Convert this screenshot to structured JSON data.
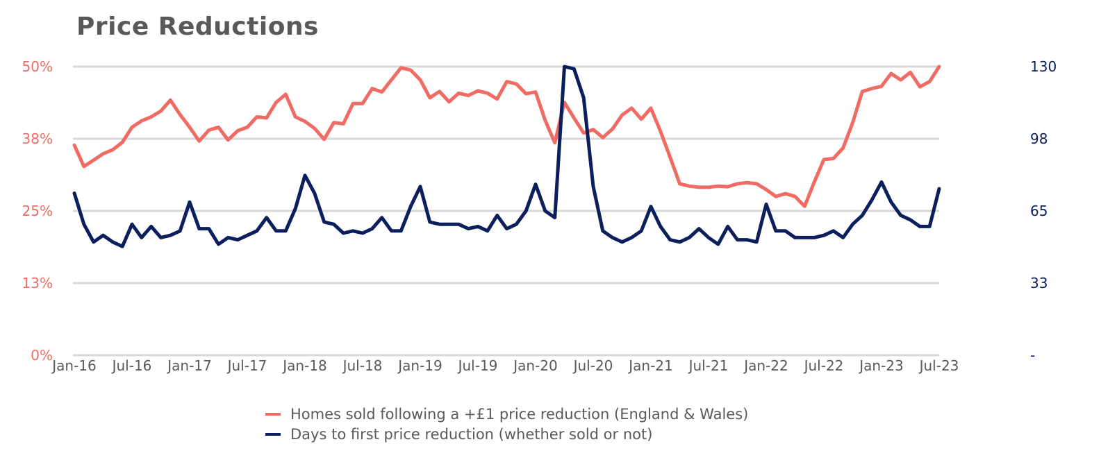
{
  "chart_data": {
    "type": "line",
    "title": "Price Reductions",
    "xlabel": "",
    "ylabel_left": "",
    "ylabel_right": "",
    "x_start": "Jan-16",
    "x_end": "Jul-23",
    "x_ticks": [
      "Jan-16",
      "Jul-16",
      "Jan-17",
      "Jul-17",
      "Jan-18",
      "Jul-18",
      "Jan-19",
      "Jul-19",
      "Jan-20",
      "Jul-20",
      "Jan-21",
      "Jul-21",
      "Jan-22",
      "Jul-22",
      "Jan-23",
      "Jul-23"
    ],
    "y_left": {
      "ticks": [
        "0%",
        "13%",
        "25%",
        "38%",
        "50%"
      ],
      "range": [
        0,
        50
      ],
      "color": "#ef6b64"
    },
    "y_right": {
      "ticks": [
        "-",
        "33",
        "65",
        "98",
        "130"
      ],
      "range": [
        0,
        130
      ],
      "color": "#0b1f5c"
    },
    "grid": true,
    "legend_position": "bottom",
    "series": [
      {
        "name": "Homes sold following a +£1 price reduction (England & Wales)",
        "axis": "left",
        "color": "#ef6b64",
        "values": [
          36.4,
          32.7,
          33.8,
          34.9,
          35.6,
          36.9,
          39.5,
          40.6,
          41.3,
          42.3,
          44.2,
          41.7,
          39.5,
          37.1,
          39.0,
          39.5,
          37.3,
          38.9,
          39.5,
          41.3,
          41.1,
          43.8,
          45.2,
          41.3,
          40.5,
          39.3,
          37.4,
          40.3,
          40.1,
          43.6,
          43.6,
          46.2,
          45.6,
          47.7,
          49.8,
          49.4,
          47.7,
          44.6,
          45.7,
          43.9,
          45.4,
          45.0,
          45.8,
          45.4,
          44.4,
          47.4,
          47.0,
          45.3,
          45.6,
          40.7,
          36.8,
          43.8,
          41.1,
          38.5,
          39.1,
          37.7,
          39.2,
          41.6,
          42.8,
          40.9,
          42.8,
          38.8,
          34.3,
          29.7,
          29.3,
          29.1,
          29.1,
          29.3,
          29.2,
          29.7,
          29.9,
          29.7,
          28.7,
          27.5,
          28.0,
          27.5,
          25.8,
          30.0,
          33.9,
          34.1,
          35.9,
          40.3,
          45.7,
          46.2,
          46.6,
          48.8,
          47.7,
          49.0,
          46.5,
          47.4,
          50.0
        ]
      },
      {
        "name": "Days to first price reduction (whether sold or not)",
        "axis": "right",
        "color": "#0b1f5c",
        "values": [
          73,
          59,
          51,
          54,
          51,
          49,
          59,
          53,
          58,
          53,
          54,
          56,
          69,
          57,
          57,
          50,
          53,
          52,
          54,
          56,
          62,
          56,
          56,
          66,
          81,
          73,
          60,
          59,
          55,
          56,
          55,
          57,
          62,
          56,
          56,
          67,
          76,
          60,
          59,
          59,
          59,
          57,
          58,
          56,
          63,
          57,
          59,
          65,
          77,
          65,
          62,
          130,
          129,
          116,
          76,
          56,
          53,
          51,
          53,
          56,
          67,
          58,
          52,
          51,
          53,
          57,
          53,
          50,
          58,
          52,
          52,
          51,
          68,
          56,
          56,
          53,
          53,
          53,
          54,
          56,
          53,
          59,
          63,
          70,
          78,
          69,
          63,
          61,
          58,
          58,
          75
        ]
      }
    ]
  }
}
